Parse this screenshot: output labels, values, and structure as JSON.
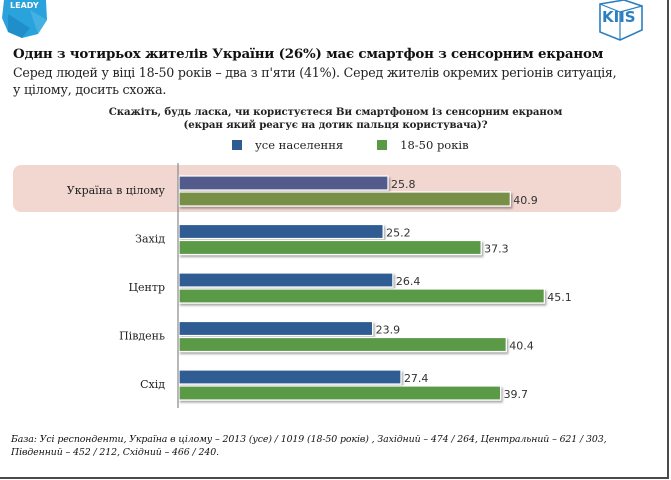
{
  "logos": {
    "left_text": "LEADY",
    "right_text": "KIIS"
  },
  "header": {
    "title": "Один з чотирьох жителів України (26%) має смартфон з сенсорним екраном",
    "subtitle": "Серед людей у віці 18-50 років – два з п'яти (41%). Серед жителів окремих регіонів ситуація, у цілому, досить схожа."
  },
  "chart_data": {
    "type": "bar",
    "orientation": "horizontal",
    "title_line1": "Скажіть, будь ласка, чи користуєтеся Ви смартфоном із сенсорним екраном",
    "title_line2": "(екран який реагує на дотик пальця користувача)?",
    "categories": [
      "Україна в цілому",
      "Захід",
      "Центр",
      "Південь",
      "Схід"
    ],
    "highlighted_category": "Україна в цілому",
    "series": [
      {
        "name": "усе населення",
        "color": "#2f5b93",
        "highlight_color": "#525a8c",
        "values": [
          25.8,
          25.2,
          26.4,
          23.9,
          27.4
        ],
        "labels": [
          "25.8",
          "25.2",
          "26.4",
          "23.9",
          "27.4"
        ]
      },
      {
        "name": "18-50 років",
        "color": "#5a9a46",
        "highlight_color": "#788f47",
        "values": [
          40.9,
          37.3,
          45.1,
          40.4,
          39.7
        ],
        "labels": [
          "40.9",
          "37.3",
          "45.1",
          "40.4",
          "39.7"
        ]
      }
    ],
    "xlim": [
      0,
      50
    ],
    "grid": false,
    "legend_position": "top",
    "data_labels": true
  },
  "footnote": "База: Усі респонденти, Україна в цілому – 2013 (усе) / 1019 (18-50 років) , Західний – 474 / 264, Центральний – 621 / 303, Південний – 452 / 212, Східний – 466 / 240."
}
